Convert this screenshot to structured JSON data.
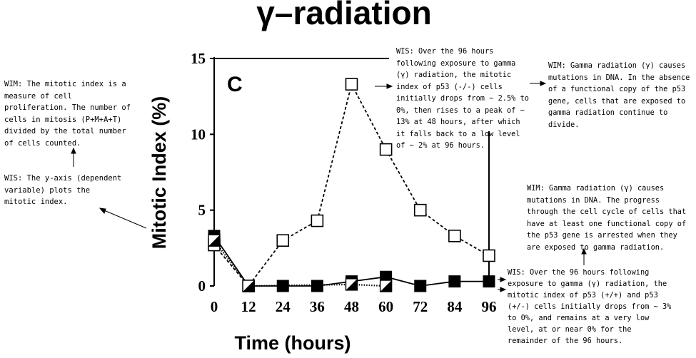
{
  "chart_data": {
    "type": "line",
    "title": "γ–radiation",
    "panel_label": "C",
    "xlabel": "Time (hours)",
    "ylabel": "Mitotic Index (%)",
    "xlim": [
      0,
      96
    ],
    "ylim": [
      0,
      15
    ],
    "x_ticks": [
      "0",
      "12",
      "24",
      "36",
      "48",
      "60",
      "72",
      "84",
      "96"
    ],
    "y_ticks": [
      "0",
      "5",
      "10",
      "15"
    ],
    "grid": false,
    "series": [
      {
        "marker": "open-square",
        "line": "dashed",
        "x": [
          0,
          12,
          24,
          36,
          48,
          60,
          72,
          84,
          96
        ],
        "y": [
          2.7,
          0,
          3.0,
          4.3,
          13.3,
          9.0,
          5.0,
          3.3,
          2.0
        ]
      },
      {
        "marker": "filled-square",
        "line": "solid",
        "x": [
          0,
          12,
          24,
          36,
          48,
          60,
          72,
          84,
          96
        ],
        "y": [
          3.3,
          0,
          0,
          0,
          0.3,
          0.6,
          0,
          0.3,
          0.3
        ]
      },
      {
        "marker": "half-filled-square",
        "line": "dotted",
        "x": [
          0,
          12,
          48,
          60
        ],
        "y": [
          3.0,
          0,
          0.1,
          0
        ]
      }
    ]
  },
  "annotations": {
    "wim_left": "WIM: The mitotic index is a measure of cell proliferation. The number of cells in mitosis (P+M+A+T) divided by the total number of cells counted.",
    "wis_left": "WIS: The y-axis (dependent variable) plots the mitotic index.",
    "wis_top": "WIS: Over the 96 hours following exposure to gamma (γ) radiation, the mitotic index of p53 (-/-) cells initially drops from ~ 2.5% to 0%, then rises to a peak of ~ 13% at 48 hours, after which it falls back to a low level of ~ 2% at 96 hours.",
    "wim_top_right": "WIM: Gamma radiation (γ) causes mutations in DNA. In the absence of a functional copy of the p53 gene, cells that are exposed to gamma radiation continue to divide.",
    "wim_mid_right": "WIM: Gamma radiation (γ) causes mutations in DNA. The progress through the cell cycle of cells that have at least one functional copy of the p53 gene is arrested when they are exposed to gamma radiation.",
    "wis_bottom_right": "WIS: Over the 96 hours following exposure to gamma (γ) radiation, the mitotic index of p53 (+/+) and p53 (+/-) cells initially drops from ~ 3% to 0%, and remains at a very low level, at or near 0% for the remainder of the 96 hours."
  }
}
